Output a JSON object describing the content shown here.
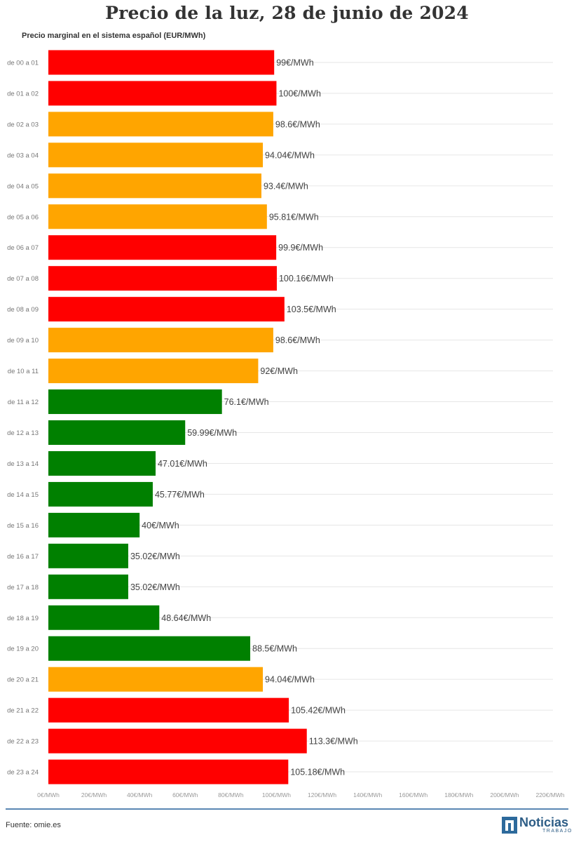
{
  "title": "Precio de la luz, 28 de junio de 2024",
  "subtitle": "Precio marginal en el sistema español (EUR/MWh)",
  "source": "Fuente: omie.es",
  "logo": {
    "word": "Noticias",
    "sub": "TRABAJO"
  },
  "colors": {
    "high": "#ff0000",
    "mid": "#ffa500",
    "low": "#008000",
    "grid": "#e6e6e6",
    "axis": "#999999"
  },
  "chart_data": {
    "type": "bar",
    "orientation": "horizontal",
    "title": "Precio de la luz, 28 de junio de 2024",
    "subtitle": "Precio marginal en el sistema español (EUR/MWh)",
    "xlim": [
      0,
      220
    ],
    "xticks": [
      "0€/MWh",
      "20€/MWh",
      "40€/MWh",
      "60€/MWh",
      "80€/MWh",
      "100€/MWh",
      "120€/MWh",
      "140€/MWh",
      "160€/MWh",
      "180€/MWh",
      "200€/MWh",
      "220€/MWh"
    ],
    "grid": true,
    "categories": [
      "de 00 a 01",
      "de 01 a 02",
      "de 02 a 03",
      "de 03 a 04",
      "de 04 a 05",
      "de 05 a 06",
      "de 06 a 07",
      "de 07 a 08",
      "de 08 a 09",
      "de 09 a 10",
      "de 10 a 11",
      "de 11 a 12",
      "de 12 a 13",
      "de 13 a 14",
      "de 14 a 15",
      "de 15 a 16",
      "de 16 a 17",
      "de 17 a 18",
      "de 18 a 19",
      "de 19 a 20",
      "de 20 a 21",
      "de 21 a 22",
      "de 22 a 23",
      "de 23 a 24"
    ],
    "values": [
      99,
      100,
      98.6,
      94.04,
      93.4,
      95.81,
      99.9,
      100.16,
      103.5,
      98.6,
      92,
      76.1,
      59.99,
      47.01,
      45.77,
      40,
      35.02,
      35.02,
      48.64,
      88.5,
      94.04,
      105.42,
      113.3,
      105.18
    ],
    "labels": [
      "99€/MWh",
      "100€/MWh",
      "98.6€/MWh",
      "94.04€/MWh",
      "93.4€/MWh",
      "95.81€/MWh",
      "99.9€/MWh",
      "100.16€/MWh",
      "103.5€/MWh",
      "98.6€/MWh",
      "92€/MWh",
      "76.1€/MWh",
      "59.99€/MWh",
      "47.01€/MWh",
      "45.77€/MWh",
      "40€/MWh",
      "35.02€/MWh",
      "35.02€/MWh",
      "48.64€/MWh",
      "88.5€/MWh",
      "94.04€/MWh",
      "105.42€/MWh",
      "113.3€/MWh",
      "105.18€/MWh"
    ],
    "levels": [
      "high",
      "high",
      "mid",
      "mid",
      "mid",
      "mid",
      "high",
      "high",
      "high",
      "mid",
      "mid",
      "low",
      "low",
      "low",
      "low",
      "low",
      "low",
      "low",
      "low",
      "low",
      "mid",
      "high",
      "high",
      "high"
    ]
  }
}
